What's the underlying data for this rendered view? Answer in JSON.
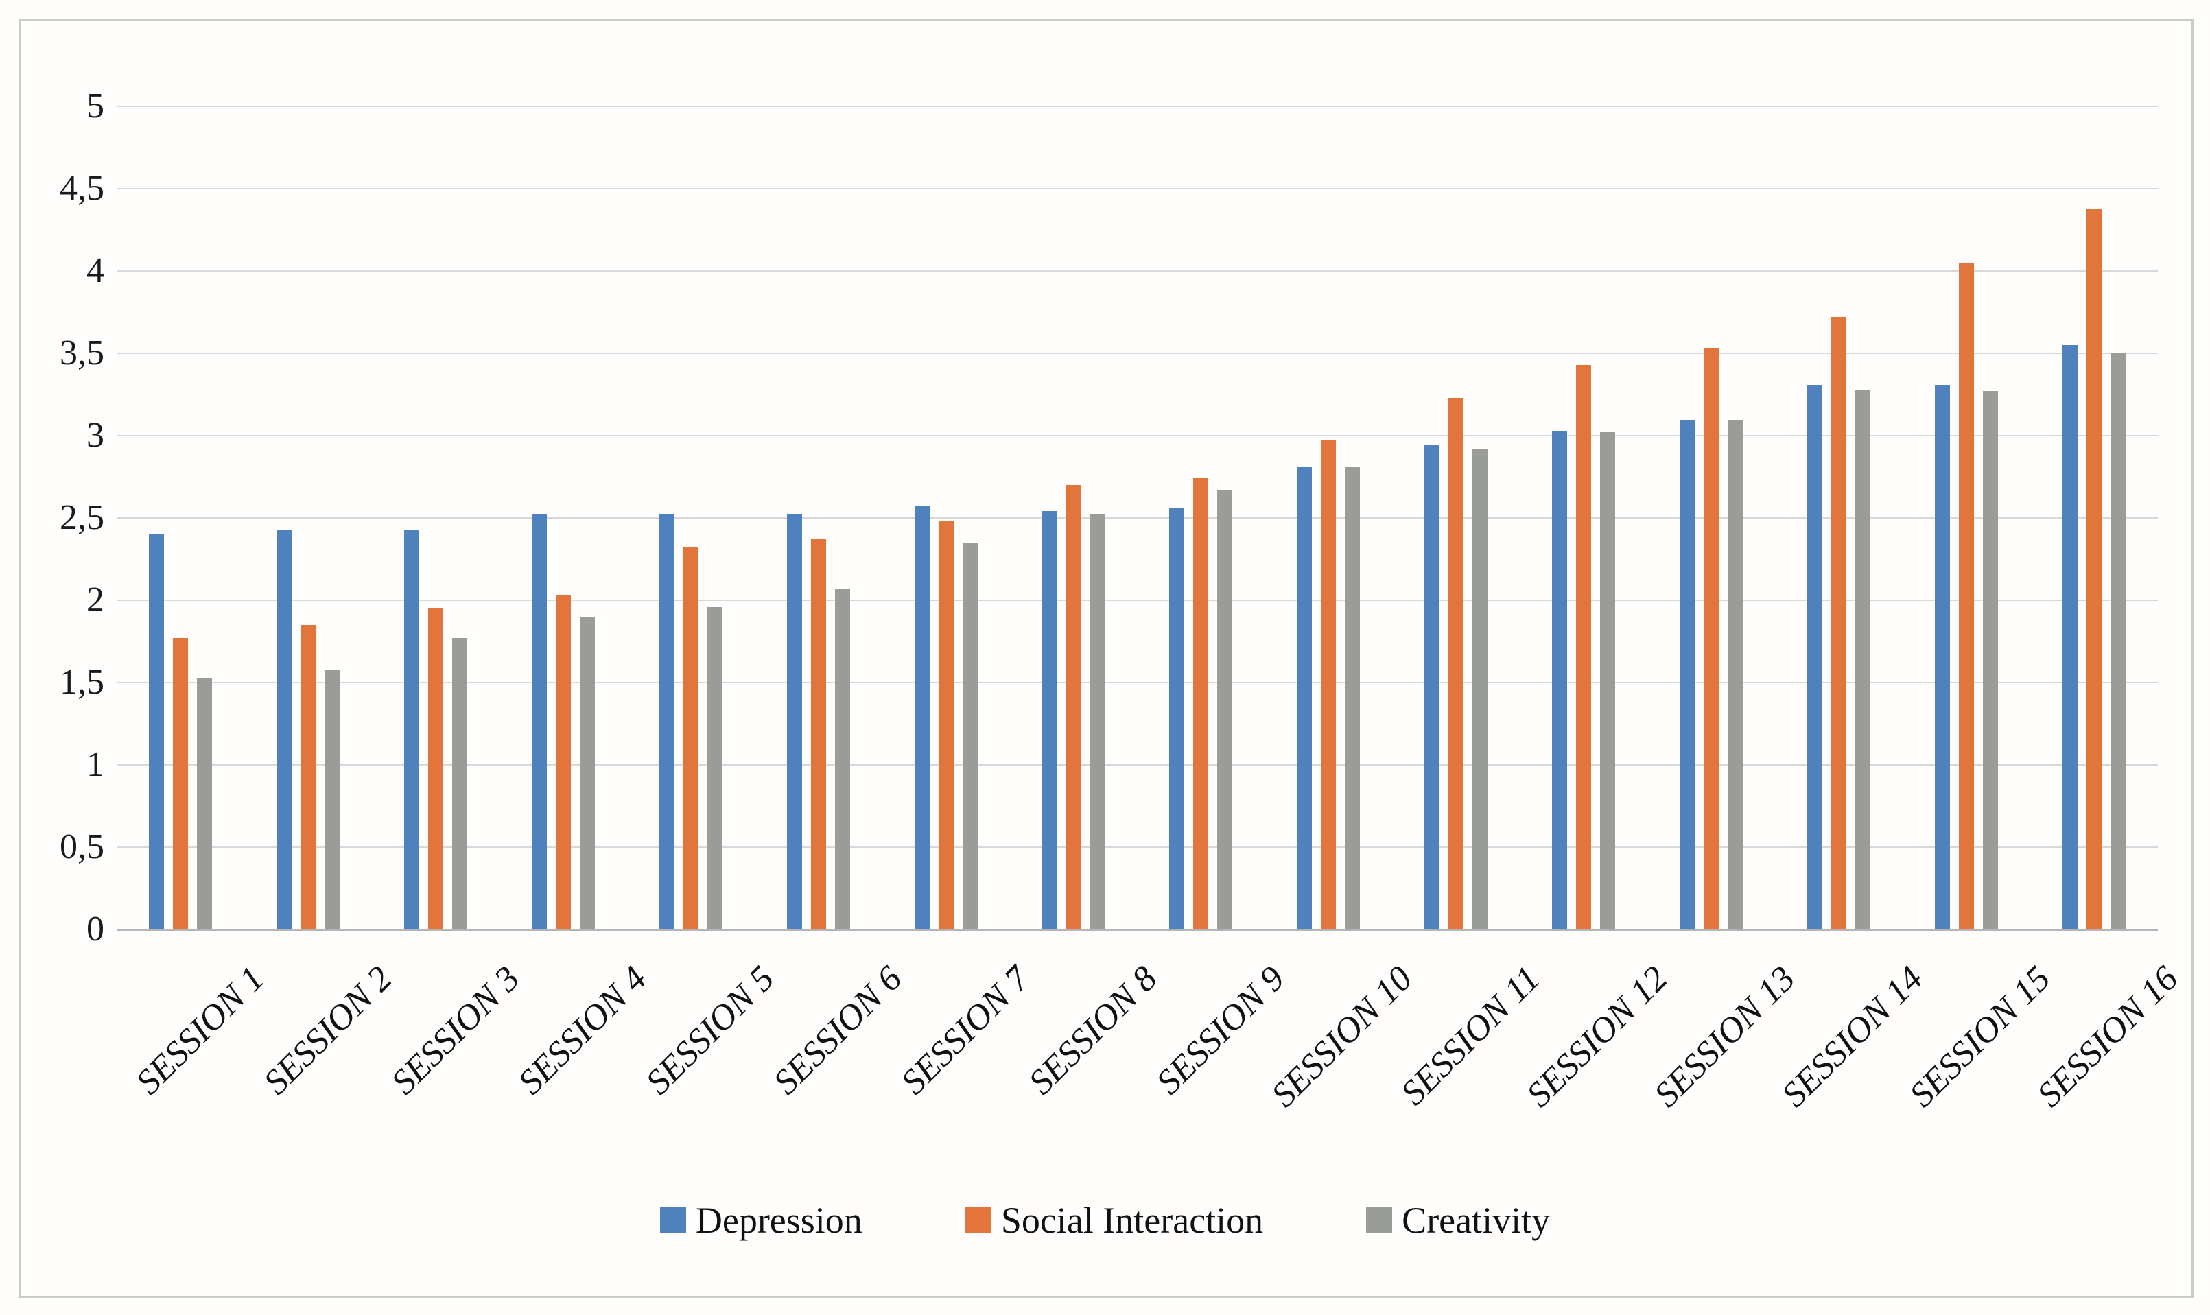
{
  "chart_data": {
    "type": "bar",
    "title": "",
    "xlabel": "",
    "ylabel": "",
    "categories": [
      "SESSION 1",
      "SESSION 2",
      "SESSION 3",
      "SESSION 4",
      "SESSION 5",
      "SESSION 6",
      "SESSION 7",
      "SESSION 8",
      "SESSION 9",
      "SESSION 10",
      "SESSION 11",
      "SESSION 12",
      "SESSION 13",
      "SESSION 14",
      "SESSION 15",
      "SESSION 16"
    ],
    "series": [
      {
        "name": "Depression",
        "color": "#4E81BD",
        "values": [
          2.4,
          2.43,
          2.43,
          2.52,
          2.52,
          2.52,
          2.57,
          2.54,
          2.56,
          2.81,
          2.94,
          3.03,
          3.09,
          3.31,
          3.31,
          3.55
        ]
      },
      {
        "name": "Social Interaction",
        "color": "#E2753B",
        "values": [
          1.77,
          1.85,
          1.95,
          2.03,
          2.32,
          2.37,
          2.48,
          2.7,
          2.74,
          2.97,
          3.23,
          3.43,
          3.53,
          3.72,
          4.05,
          4.38
        ]
      },
      {
        "name": "Creativity",
        "color": "#9A9C9A",
        "values": [
          1.53,
          1.58,
          1.77,
          1.9,
          1.96,
          2.07,
          2.35,
          2.52,
          2.67,
          2.81,
          2.92,
          3.02,
          3.09,
          3.28,
          3.27,
          3.5
        ]
      }
    ],
    "ylim": [
      0,
      5
    ],
    "ytick_step": 0.5,
    "ytick_labels": [
      "0",
      "0,5",
      "1",
      "1,5",
      "2",
      "2,5",
      "3",
      "3,5",
      "4",
      "4,5",
      "5"
    ],
    "decimal_separator": ",",
    "grid": true,
    "legend_position": "bottom",
    "axis_color": "#b5b5b5",
    "gridline_color": "#d8d8d8",
    "frame_border_color": "#c9cbc8"
  }
}
